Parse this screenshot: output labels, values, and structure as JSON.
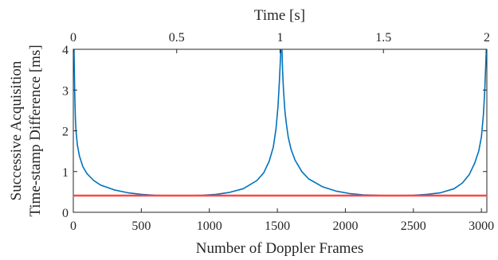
{
  "chart_data": {
    "type": "line",
    "title": "",
    "xlabel": "Number of Doppler Frames",
    "ylabel": [
      "Successive Acquisition",
      "Time-stamp Difference [ms]"
    ],
    "x2label": "Time [s]",
    "xlim": [
      0,
      3040
    ],
    "ylim": [
      0,
      4
    ],
    "x2lim": [
      0,
      2
    ],
    "xticks": [
      "0",
      "500",
      "1000",
      "1500",
      "2000",
      "2500",
      "3000"
    ],
    "xtick_values": [
      0,
      500,
      1000,
      1500,
      2000,
      2500,
      3000
    ],
    "yticks": [
      "0",
      "1",
      "2",
      "3",
      "4"
    ],
    "ytick_values": [
      0,
      1,
      2,
      3,
      4
    ],
    "x2ticks": [
      "0",
      "0.5",
      "1",
      "1.5",
      "2"
    ],
    "x2tick_values": [
      0,
      0.5,
      1,
      1.5,
      2
    ],
    "grid": false,
    "legend": "none",
    "series": [
      {
        "color": "#0072BD",
        "segments": [
          {
            "x": [
              5,
              10,
              15,
              20,
              30,
              45,
              70,
              100,
              150,
              200,
              300,
              400,
              500,
              600,
              700,
              760,
              850,
              950,
              1050,
              1150,
              1250,
              1350,
              1400,
              1440,
              1470,
              1490,
              1505,
              1515,
              1522,
              1526
            ],
            "y": [
              4.0,
              3.0,
              2.3,
              2.0,
              1.65,
              1.38,
              1.12,
              0.95,
              0.78,
              0.67,
              0.55,
              0.48,
              0.44,
              0.42,
              0.41,
              0.41,
              0.41,
              0.42,
              0.44,
              0.49,
              0.58,
              0.78,
              0.97,
              1.25,
              1.6,
              2.05,
              2.6,
              3.2,
              3.7,
              4.0
            ]
          },
          {
            "x": [
              1534,
              1538,
              1545,
              1555,
              1565,
              1580,
              1600,
              1630,
              1680,
              1730,
              1830,
              1930,
              2030,
              2130,
              2230,
              2280,
              2400,
              2500,
              2600,
              2700,
              2800,
              2860,
              2910,
              2950,
              2980,
              3000,
              3015,
              3025,
              3032,
              3036
            ],
            "y": [
              4.0,
              3.5,
              3.0,
              2.5,
              2.2,
              1.85,
              1.55,
              1.28,
              1.0,
              0.82,
              0.63,
              0.52,
              0.46,
              0.43,
              0.42,
              0.41,
              0.41,
              0.42,
              0.44,
              0.48,
              0.58,
              0.72,
              0.92,
              1.2,
              1.5,
              1.85,
              2.4,
              3.0,
              3.6,
              4.0
            ]
          },
          {
            "x": [
              3036,
              3040
            ],
            "y": [
              4.0,
              3.85
            ]
          }
        ]
      },
      {
        "color": "#FF4545",
        "segments": [
          {
            "x": [
              0,
              3040
            ],
            "y": [
              0.41,
              0.41
            ]
          }
        ]
      }
    ]
  }
}
